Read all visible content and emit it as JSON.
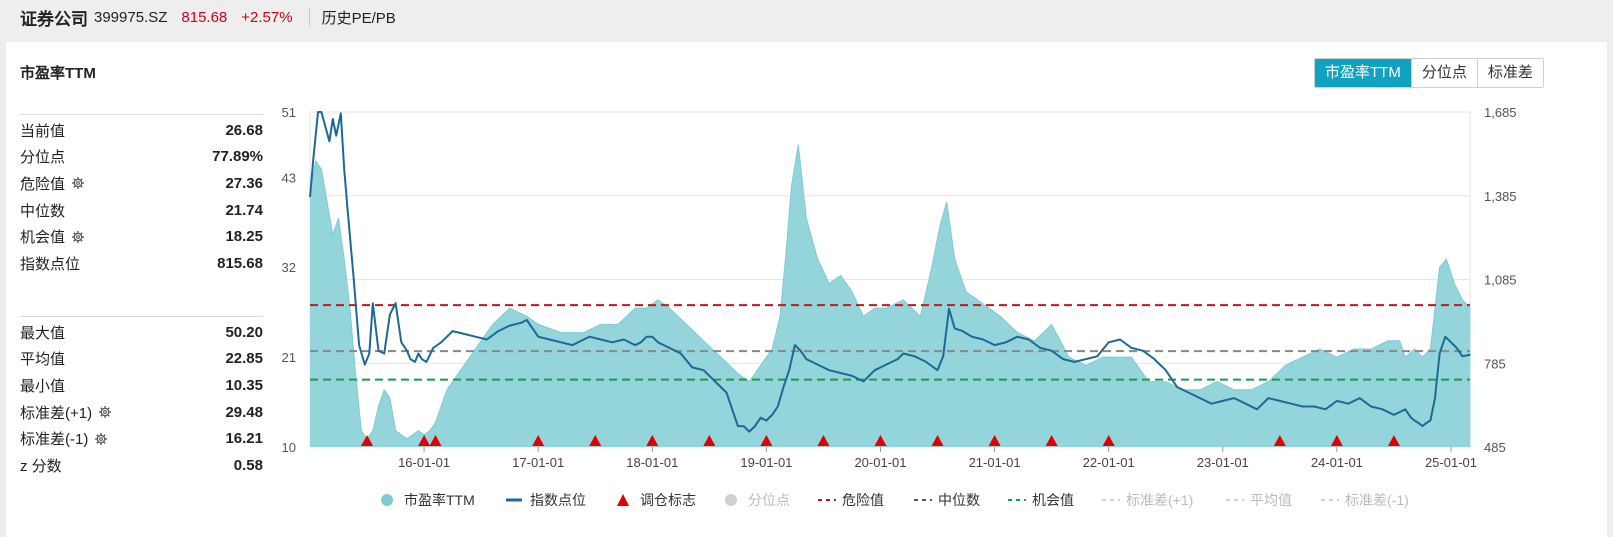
{
  "header": {
    "name": "证券公司",
    "code": "399975.SZ",
    "price": "815.68",
    "change": "+2.57%",
    "page": "历史PE/PB"
  },
  "panel": {
    "title": "市盈率TTM"
  },
  "tabs": [
    {
      "label": "市盈率TTM",
      "active": true
    },
    {
      "label": "分位点",
      "active": false
    },
    {
      "label": "标准差",
      "active": false
    }
  ],
  "stats_top": [
    {
      "label": "当前值",
      "value": "26.68",
      "gear": false
    },
    {
      "label": "分位点",
      "value": "77.89%",
      "gear": false
    },
    {
      "label": "危险值",
      "value": "27.36",
      "gear": true
    },
    {
      "label": "中位数",
      "value": "21.74",
      "gear": false
    },
    {
      "label": "机会值",
      "value": "18.25",
      "gear": true
    },
    {
      "label": "指数点位",
      "value": "815.68",
      "gear": false
    }
  ],
  "stats_bottom": [
    {
      "label": "最大值",
      "value": "50.20",
      "gear": false
    },
    {
      "label": "平均值",
      "value": "22.85",
      "gear": false
    },
    {
      "label": "最小值",
      "value": "10.35",
      "gear": false
    },
    {
      "label": "标准差(+1)",
      "value": "29.48",
      "gear": true
    },
    {
      "label": "标准差(-1)",
      "value": "16.21",
      "gear": true
    },
    {
      "label": "z 分数",
      "value": "0.58",
      "gear": false
    }
  ],
  "colors": {
    "pe_fill": "#93d5db",
    "pe_line": "#7fcbd2",
    "index_line": "#1b6a96",
    "marker": "#e00000",
    "danger": "#c0181c",
    "median": "#888888",
    "opportunity": "#1e9a4c",
    "accent": "#10a3c0",
    "negative_text": "#d0021b"
  },
  "chart_data": {
    "type": "area",
    "x_start": "2015-01-01",
    "x_end": "2025-03-01",
    "y_left": {
      "ticks": [
        10,
        21,
        32,
        43,
        51
      ],
      "range": [
        10,
        51
      ]
    },
    "y_right": {
      "ticks": [
        "485",
        "785",
        "1,085",
        "1,385",
        "1,685"
      ],
      "range": [
        485,
        1685
      ]
    },
    "x_ticks": [
      "16-01-01",
      "17-01-01",
      "18-01-01",
      "19-01-01",
      "20-01-01",
      "21-01-01",
      "22-01-01",
      "23-01-01",
      "24-01-01",
      "25-01-01"
    ],
    "reference_lines": {
      "danger": 27.36,
      "median": 21.74,
      "opportunity": 18.25
    },
    "pe_series": {
      "name": "市盈率TTM",
      "x": [
        2015.0,
        2015.05,
        2015.1,
        2015.15,
        2015.2,
        2015.25,
        2015.3,
        2015.35,
        2015.4,
        2015.45,
        2015.5,
        2015.55,
        2015.6,
        2015.65,
        2015.7,
        2015.75,
        2015.85,
        2015.95,
        2016.0,
        2016.05,
        2016.1,
        2016.15,
        2016.2,
        2016.3,
        2016.45,
        2016.6,
        2016.75,
        2016.9,
        2017.0,
        2017.2,
        2017.4,
        2017.55,
        2017.7,
        2017.85,
        2017.95,
        2018.05,
        2018.15,
        2018.3,
        2018.45,
        2018.6,
        2018.75,
        2018.85,
        2018.95,
        2019.05,
        2019.12,
        2019.18,
        2019.22,
        2019.28,
        2019.35,
        2019.45,
        2019.55,
        2019.65,
        2019.75,
        2019.85,
        2019.95,
        2020.05,
        2020.2,
        2020.35,
        2020.45,
        2020.52,
        2020.58,
        2020.65,
        2020.75,
        2020.85,
        2020.95,
        2021.05,
        2021.2,
        2021.35,
        2021.5,
        2021.65,
        2021.8,
        2021.95,
        2022.1,
        2022.2,
        2022.35,
        2022.5,
        2022.65,
        2022.8,
        2022.95,
        2023.1,
        2023.25,
        2023.4,
        2023.55,
        2023.7,
        2023.85,
        2024.0,
        2024.15,
        2024.3,
        2024.45,
        2024.55,
        2024.6,
        2024.68,
        2024.75,
        2024.82,
        2024.9,
        2024.96,
        2025.03,
        2025.1,
        2025.17
      ],
      "y": [
        41,
        45,
        44,
        40,
        36,
        38,
        33,
        27,
        19,
        12,
        11,
        12,
        15,
        17,
        16,
        12,
        11,
        12,
        11.5,
        12,
        13,
        15,
        17,
        19,
        22,
        25,
        27,
        26,
        25,
        24,
        24,
        25,
        25,
        27,
        27,
        28,
        27,
        25,
        23,
        21,
        19,
        18,
        20,
        22,
        26,
        35,
        42,
        47,
        38,
        33,
        30,
        31,
        29,
        26,
        27,
        27,
        28,
        26,
        32,
        37,
        40,
        33,
        29,
        28,
        27,
        26,
        24,
        23,
        25,
        21,
        20,
        21,
        21,
        21,
        18,
        18,
        17,
        17,
        18,
        17,
        17,
        18,
        20,
        21,
        22,
        21,
        22,
        22,
        23,
        23,
        21,
        22,
        21,
        22,
        32,
        33,
        30,
        28,
        27
      ]
    },
    "index_series": {
      "name": "指数点位",
      "x": [
        2015.0,
        2015.03,
        2015.07,
        2015.1,
        2015.13,
        2015.17,
        2015.2,
        2015.23,
        2015.27,
        2015.3,
        2015.33,
        2015.38,
        2015.43,
        2015.48,
        2015.52,
        2015.55,
        2015.6,
        2015.65,
        2015.7,
        2015.75,
        2015.8,
        2015.85,
        2015.88,
        2015.92,
        2015.95,
        2015.98,
        2016.02,
        2016.08,
        2016.15,
        2016.25,
        2016.35,
        2016.45,
        2016.55,
        2016.65,
        2016.75,
        2016.85,
        2016.9,
        2017.0,
        2017.1,
        2017.2,
        2017.3,
        2017.45,
        2017.55,
        2017.65,
        2017.75,
        2017.85,
        2017.9,
        2017.95,
        2018.0,
        2018.05,
        2018.1,
        2018.15,
        2018.25,
        2018.35,
        2018.45,
        2018.55,
        2018.65,
        2018.75,
        2018.8,
        2018.85,
        2018.9,
        2018.95,
        2019.0,
        2019.05,
        2019.1,
        2019.15,
        2019.2,
        2019.25,
        2019.3,
        2019.35,
        2019.4,
        2019.45,
        2019.55,
        2019.65,
        2019.75,
        2019.85,
        2019.95,
        2020.05,
        2020.1,
        2020.15,
        2020.2,
        2020.3,
        2020.4,
        2020.5,
        2020.55,
        2020.6,
        2020.65,
        2020.72,
        2020.8,
        2020.9,
        2021.0,
        2021.1,
        2021.2,
        2021.3,
        2021.4,
        2021.5,
        2021.6,
        2021.7,
        2021.8,
        2021.9,
        2022.0,
        2022.1,
        2022.2,
        2022.3,
        2022.4,
        2022.5,
        2022.6,
        2022.7,
        2022.8,
        2022.9,
        2023.0,
        2023.1,
        2023.2,
        2023.3,
        2023.4,
        2023.5,
        2023.6,
        2023.7,
        2023.8,
        2023.9,
        2024.0,
        2024.1,
        2024.2,
        2024.3,
        2024.4,
        2024.5,
        2024.55,
        2024.6,
        2024.65,
        2024.68,
        2024.72,
        2024.75,
        2024.78,
        2024.82,
        2024.86,
        2024.9,
        2024.95,
        2025.0,
        2025.05,
        2025.1,
        2025.17
      ],
      "y": [
        1380,
        1520,
        1685,
        1685,
        1640,
        1580,
        1660,
        1600,
        1680,
        1480,
        1330,
        1100,
        850,
        780,
        820,
        1000,
        830,
        820,
        960,
        1000,
        860,
        830,
        800,
        790,
        820,
        800,
        790,
        840,
        860,
        900,
        890,
        880,
        870,
        900,
        920,
        930,
        940,
        880,
        870,
        860,
        850,
        880,
        870,
        860,
        870,
        850,
        860,
        880,
        880,
        860,
        850,
        840,
        820,
        770,
        760,
        720,
        680,
        560,
        560,
        540,
        560,
        590,
        580,
        600,
        630,
        700,
        760,
        850,
        830,
        800,
        790,
        780,
        760,
        750,
        740,
        720,
        760,
        780,
        790,
        800,
        820,
        810,
        790,
        760,
        810,
        980,
        910,
        900,
        880,
        870,
        850,
        860,
        880,
        870,
        840,
        830,
        800,
        790,
        800,
        810,
        860,
        870,
        840,
        830,
        800,
        760,
        700,
        680,
        660,
        640,
        650,
        660,
        640,
        620,
        660,
        650,
        640,
        630,
        630,
        620,
        650,
        640,
        660,
        630,
        620,
        600,
        610,
        620,
        590,
        580,
        570,
        560,
        570,
        580,
        660,
        820,
        880,
        860,
        840,
        810,
        816
      ]
    },
    "rebalance_markers": [
      "2015.5",
      "2016.0",
      "2016.1",
      "2017.0",
      "2017.5",
      "2018.0",
      "2018.5",
      "2019.0",
      "2019.5",
      "2020.0",
      "2020.5",
      "2021.0",
      "2021.5",
      "2022.0",
      "2023.5",
      "2024.0",
      "2024.5"
    ],
    "legend": [
      {
        "name": "市盈率TTM",
        "kind": "dot",
        "color": "#7fcbd2",
        "enabled": true
      },
      {
        "name": "指数点位",
        "kind": "line",
        "color": "#1b6a96",
        "enabled": true
      },
      {
        "name": "调仓标志",
        "kind": "triangle",
        "color": "#e00000",
        "enabled": true
      },
      {
        "name": "分位点",
        "kind": "dot",
        "color": "#c8c8c8",
        "enabled": false
      },
      {
        "name": "危险值",
        "kind": "dash",
        "color": "#c0181c",
        "enabled": true
      },
      {
        "name": "中位数",
        "kind": "dash",
        "color": "#555555",
        "enabled": true
      },
      {
        "name": "机会值",
        "kind": "dash",
        "color": "#1e9a4c",
        "enabled": true
      },
      {
        "name": "标准差(+1)",
        "kind": "dash",
        "color": "#c8c8c8",
        "enabled": false
      },
      {
        "name": "平均值",
        "kind": "dash",
        "color": "#c8c8c8",
        "enabled": false
      },
      {
        "name": "标准差(-1)",
        "kind": "dash",
        "color": "#c8c8c8",
        "enabled": false
      }
    ]
  }
}
